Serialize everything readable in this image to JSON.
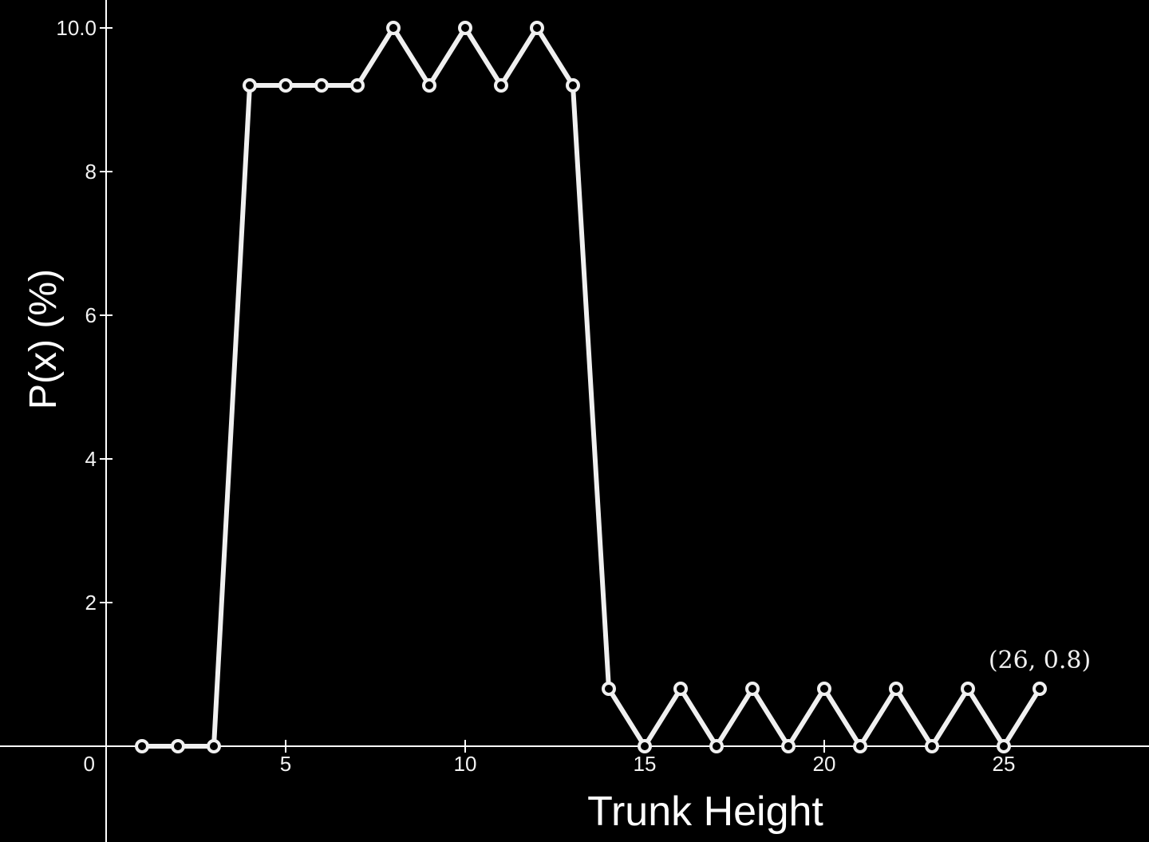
{
  "chart_data": {
    "type": "line",
    "title": "",
    "xlabel": "Trunk Height",
    "ylabel": "P(x) (%)",
    "xlim": [
      -1,
      28.8
    ],
    "ylim": [
      -1.3,
      10.4
    ],
    "grid": false,
    "x_ticks": [
      5,
      10,
      15,
      20,
      25
    ],
    "y_ticks": [
      2,
      4,
      6,
      8,
      10
    ],
    "x_tick_labels": [
      "5",
      "10",
      "15",
      "20",
      "25"
    ],
    "y_tick_labels": [
      "2",
      "4",
      "6",
      "8",
      "10.0"
    ],
    "origin_label": "0",
    "x": [
      1,
      2,
      3,
      4,
      5,
      6,
      7,
      8,
      9,
      10,
      11,
      12,
      13,
      14,
      15,
      16,
      17,
      18,
      19,
      20,
      21,
      22,
      23,
      24,
      25,
      26
    ],
    "series": [
      {
        "values": [
          0,
          0,
          0,
          9.2,
          9.2,
          9.2,
          9.2,
          10,
          9.2,
          10,
          9.2,
          10,
          9.2,
          0.8,
          0,
          0.8,
          0,
          0.8,
          0,
          0.8,
          0,
          0.8,
          0,
          0.8,
          0,
          0.8
        ],
        "color": "#f0f0f0",
        "marker": "hollow-circle"
      }
    ],
    "annotations": [
      {
        "x": 26,
        "y": 0.8,
        "text": "(26, 0.8)"
      }
    ],
    "colors": {
      "background": "#000000",
      "axis": "#ffffff",
      "line": "#f0f0f0",
      "marker_fill": "#000000"
    }
  }
}
